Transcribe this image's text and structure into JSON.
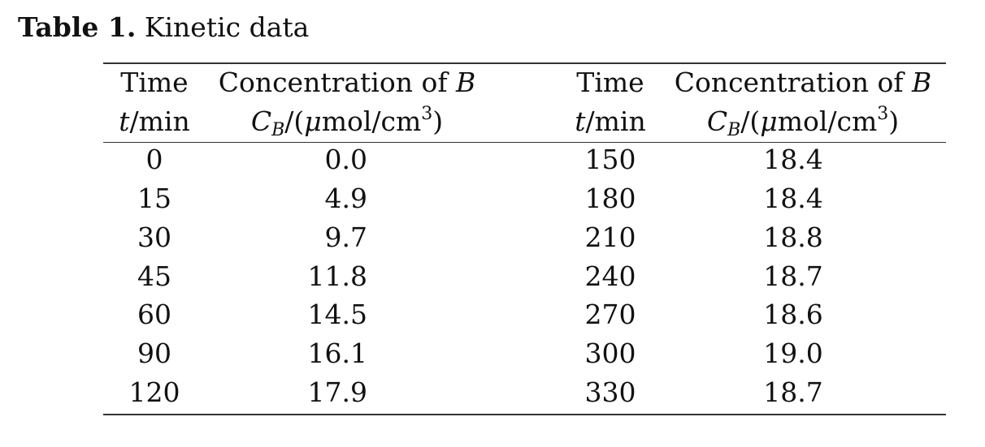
{
  "caption": {
    "label": "Table 1.",
    "text": "Kinetic data"
  },
  "header": {
    "left": {
      "time_name": "Time",
      "time_symbol": "t",
      "time_unit": "/min",
      "conc_name_prefix": "Concentration of ",
      "conc_name_var": "B",
      "conc_symbol": "C",
      "conc_subscript": "B",
      "conc_unit_open": "/(",
      "conc_unit_mu": "μ",
      "conc_unit_mid": "mol/cm",
      "conc_unit_exp": "3",
      "conc_unit_close": ")"
    },
    "right": {
      "time_name": "Time",
      "time_symbol": "t",
      "time_unit": "/min",
      "conc_name_prefix": "Concentration of ",
      "conc_name_var": "B",
      "conc_symbol": "C",
      "conc_subscript": "B",
      "conc_unit_open": "/(",
      "conc_unit_mu": "μ",
      "conc_unit_mid": "mol/cm",
      "conc_unit_exp": "3",
      "conc_unit_close": ")"
    }
  },
  "rows": [
    {
      "t1": "0",
      "c1": "0.0",
      "t2": "150",
      "c2": "18.4"
    },
    {
      "t1": "15",
      "c1": "4.9",
      "t2": "180",
      "c2": "18.4"
    },
    {
      "t1": "30",
      "c1": "9.7",
      "t2": "210",
      "c2": "18.8"
    },
    {
      "t1": "45",
      "c1": "11.8",
      "t2": "240",
      "c2": "18.7"
    },
    {
      "t1": "60",
      "c1": "14.5",
      "t2": "270",
      "c2": "18.6"
    },
    {
      "t1": "90",
      "c1": "16.1",
      "t2": "300",
      "c2": "19.0"
    },
    {
      "t1": "120",
      "c1": "17.9",
      "t2": "330",
      "c2": "18.7"
    }
  ]
}
